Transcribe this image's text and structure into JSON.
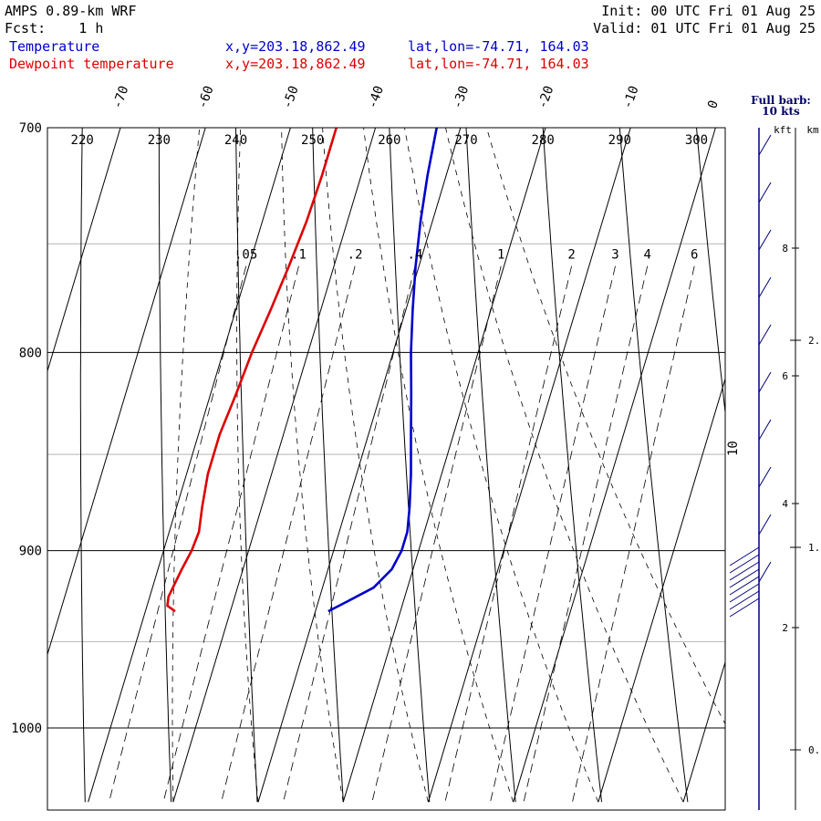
{
  "header": {
    "title": "AMPS 0.89-km WRF",
    "fcst_label": "Fcst:",
    "fcst_value": "1 h",
    "init": "Init: 00 UTC Fri 01 Aug 25",
    "valid": "Valid: 01 UTC Fri 01 Aug 25"
  },
  "legend": {
    "temperature": {
      "name": "Temperature",
      "xy": "x,y=203.18,862.49",
      "latlon": "lat,lon=-74.71, 164.03",
      "color": "#0000cc"
    },
    "dewpoint": {
      "name": "Dewpoint temperature",
      "xy": "x,y=203.18,862.49",
      "latlon": "lat,lon=-74.71, 164.03",
      "color": "#dd0000"
    }
  },
  "barb_legend": {
    "line1": "Full barb:",
    "line2": "10 kts"
  },
  "height_axis": {
    "kft_label": "kft",
    "km_label": "km"
  },
  "chart_data": {
    "type": "line",
    "diagram": "skew-T log-P",
    "ylim": [
      1045,
      700
    ],
    "pressure_ticks": [
      700,
      800,
      900,
      1000
    ],
    "temperature_ticks": [
      -70,
      -60,
      -50,
      -40,
      -30,
      -20,
      -10,
      0
    ],
    "theta_labels": [
      220,
      230,
      240,
      250,
      260,
      270,
      280,
      290,
      300
    ],
    "mixing_ratio_labels": [
      ".05",
      ".1",
      ".2",
      ".4",
      "1",
      "2",
      "3",
      "4",
      "6"
    ],
    "km_ticks": [
      0,
      1,
      2
    ],
    "kft_ticks": [
      2,
      4,
      6,
      8
    ],
    "side_label": "10",
    "series": [
      {
        "name": "Temperature",
        "color": "#0000cc",
        "p": [
          933,
          927,
          920,
          910,
          900,
          890,
          877,
          860,
          840,
          820,
          800,
          780,
          760,
          740,
          720,
          700
        ],
        "t": [
          -28.5,
          -26.4,
          -24.0,
          -22.5,
          -22.0,
          -22.0,
          -22.6,
          -23.6,
          -25.0,
          -26.4,
          -27.9,
          -29.2,
          -30.4,
          -31.4,
          -32.2,
          -32.8
        ]
      },
      {
        "name": "Dewpoint temperature",
        "color": "#dd0000",
        "p": [
          933,
          930,
          925,
          920,
          910,
          900,
          890,
          877,
          860,
          840,
          820,
          800,
          780,
          760,
          740,
          720,
          700
        ],
        "t": [
          -46.5,
          -47.6,
          -47.8,
          -47.6,
          -47.2,
          -46.7,
          -46.5,
          -47.0,
          -47.5,
          -47.5,
          -47.0,
          -46.6,
          -45.9,
          -45.3,
          -44.8,
          -44.6,
          -44.6
        ]
      }
    ]
  }
}
